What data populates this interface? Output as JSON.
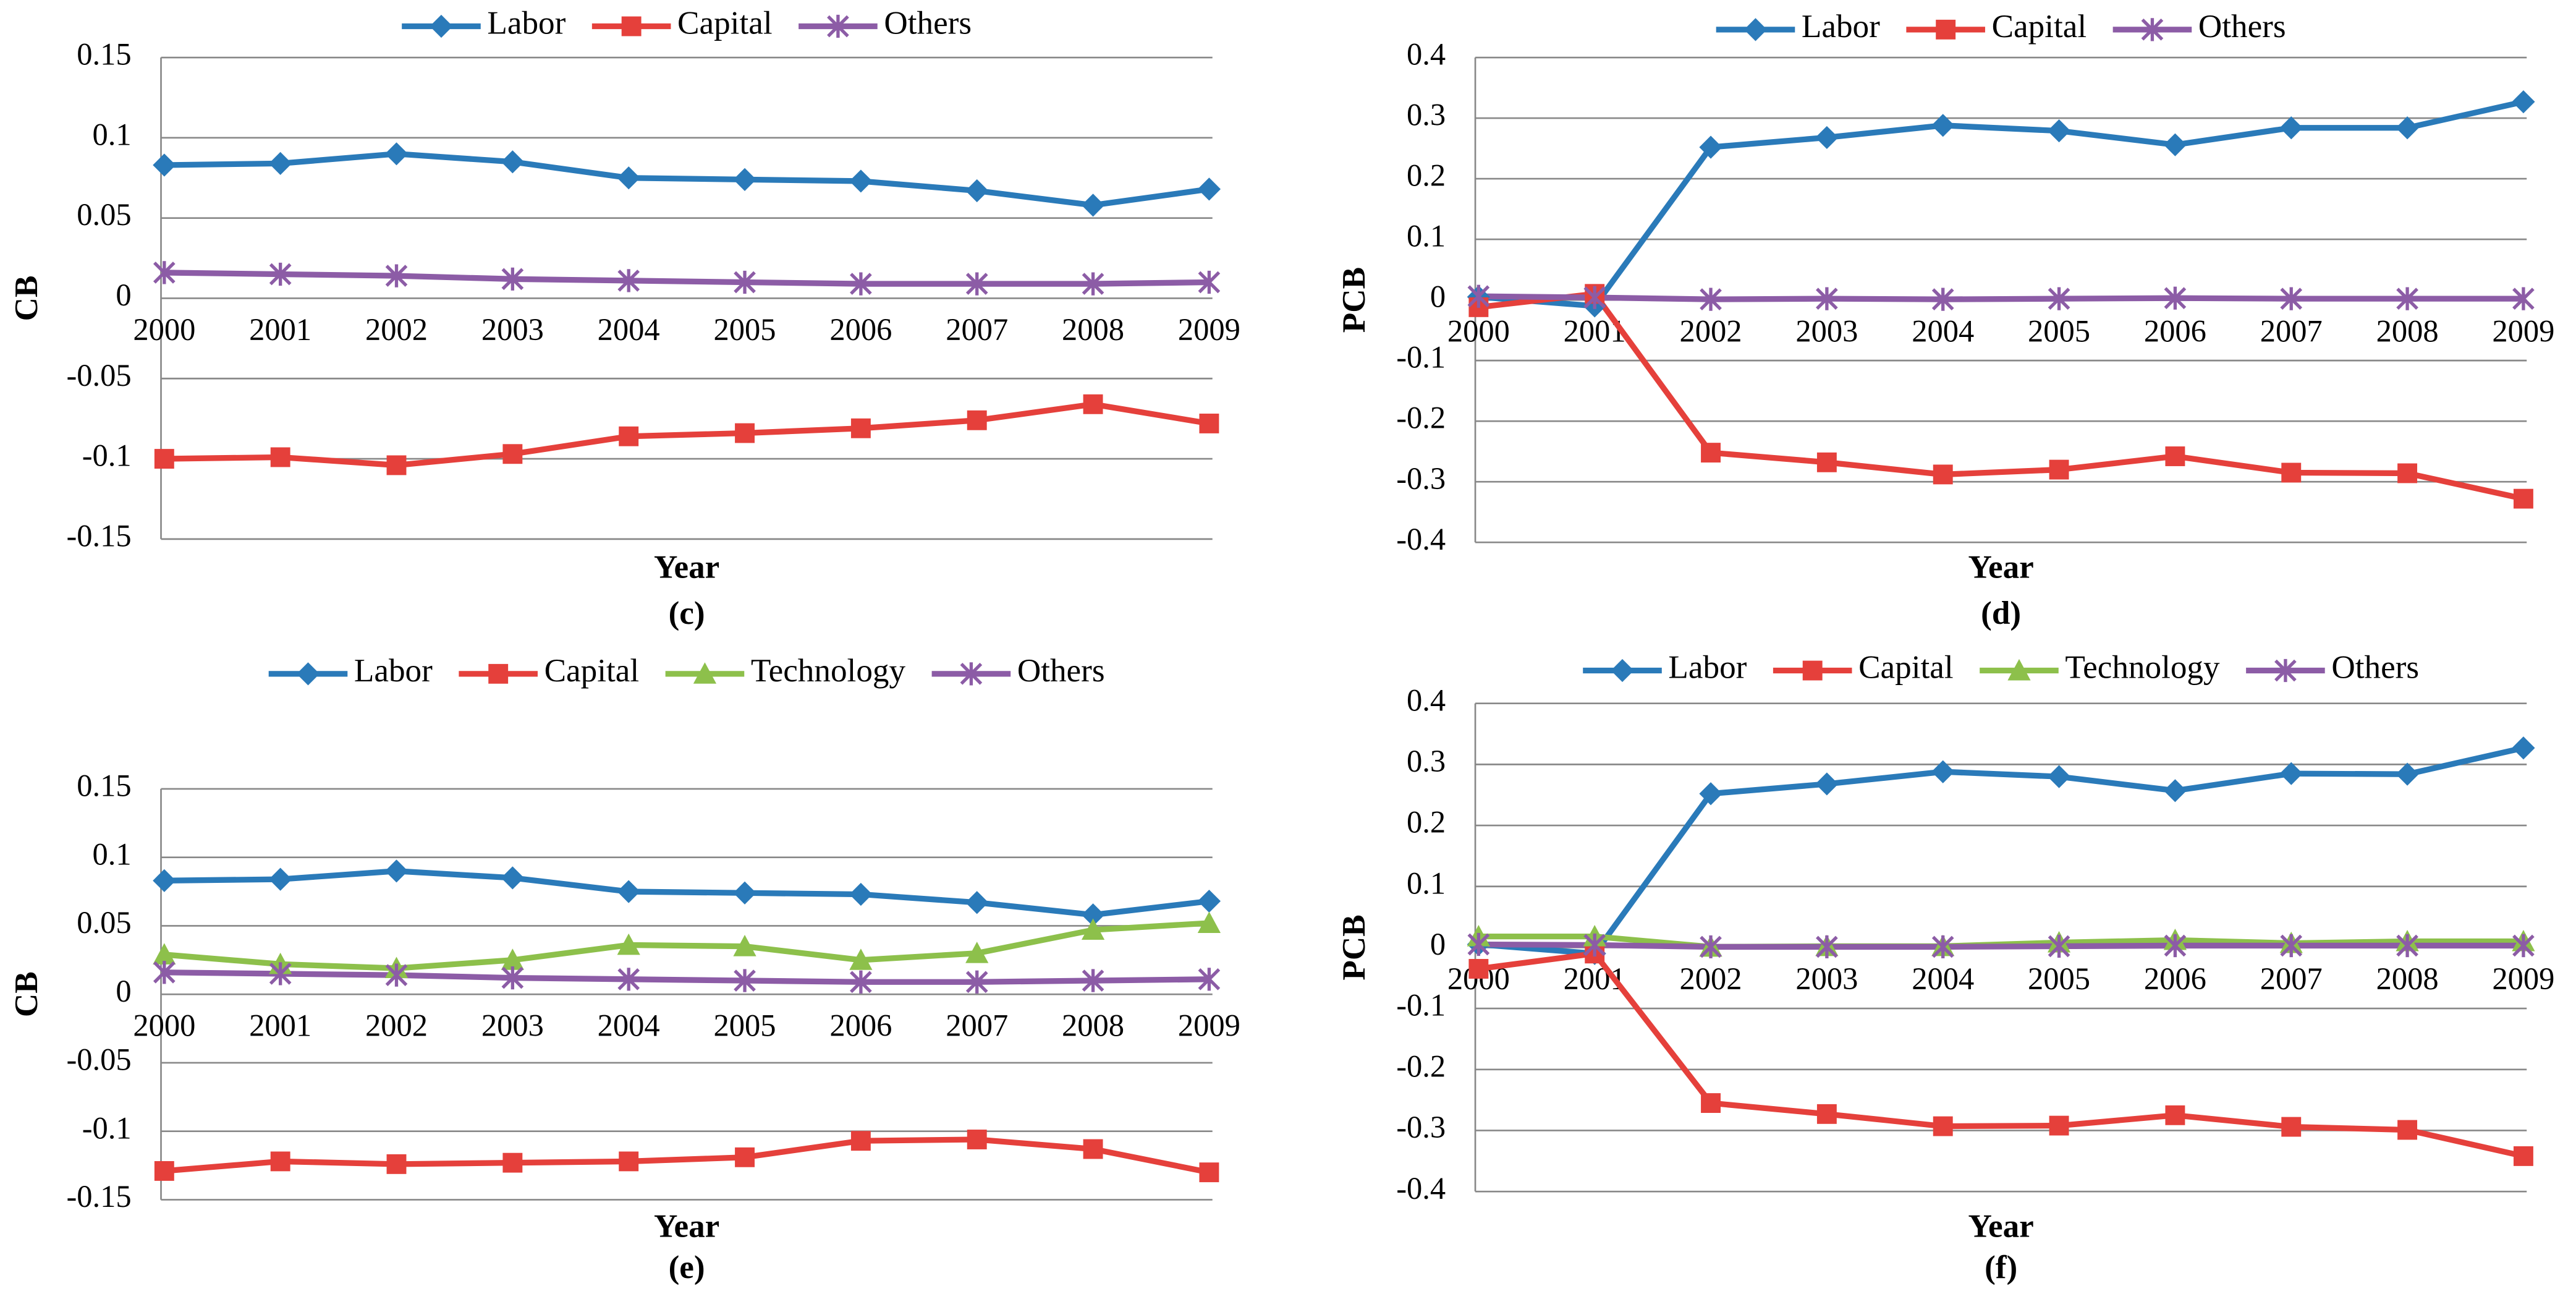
{
  "chart_data": [
    {
      "type": "line",
      "caption": "(c)",
      "x_label": "Year",
      "y_label": "CB",
      "categories": [
        "2000",
        "2001",
        "2002",
        "2003",
        "2004",
        "2005",
        "2006",
        "2007",
        "2008",
        "2009"
      ],
      "ylim": [
        -0.15,
        0.15
      ],
      "yticks": [
        -0.15,
        -0.1,
        -0.05,
        0,
        0.05,
        0.1,
        0.15
      ],
      "grid": true,
      "series": [
        {
          "name": "Labor",
          "color": "#2a7ab9",
          "marker": "diamond",
          "values": [
            0.083,
            0.084,
            0.09,
            0.085,
            0.075,
            0.074,
            0.073,
            0.067,
            0.058,
            0.068
          ]
        },
        {
          "name": "Capital",
          "color": "#e5403b",
          "marker": "square",
          "values": [
            -0.1,
            -0.099,
            -0.104,
            -0.097,
            -0.086,
            -0.084,
            -0.081,
            -0.076,
            -0.066,
            -0.078
          ]
        },
        {
          "name": "Others",
          "color": "#8c5ca6",
          "marker": "star",
          "values": [
            0.016,
            0.015,
            0.014,
            0.012,
            0.011,
            0.01,
            0.009,
            0.009,
            0.009,
            0.01
          ]
        }
      ]
    },
    {
      "type": "line",
      "caption": "(d)",
      "x_label": "Year",
      "y_label": "PCB",
      "categories": [
        "2000",
        "2001",
        "2002",
        "2003",
        "2004",
        "2005",
        "2006",
        "2007",
        "2008",
        "2009"
      ],
      "ylim": [
        -0.4,
        0.4
      ],
      "yticks": [
        -0.4,
        -0.3,
        -0.2,
        -0.1,
        0,
        0.1,
        0.2,
        0.3,
        0.4
      ],
      "grid": true,
      "series": [
        {
          "name": "Labor",
          "color": "#2a7ab9",
          "marker": "diamond",
          "values": [
            0.005,
            -0.01,
            0.252,
            0.268,
            0.288,
            0.279,
            0.256,
            0.284,
            0.284,
            0.327
          ]
        },
        {
          "name": "Capital",
          "color": "#e5403b",
          "marker": "square",
          "values": [
            -0.012,
            0.01,
            -0.252,
            -0.268,
            -0.288,
            -0.28,
            -0.258,
            -0.285,
            -0.286,
            -0.328
          ]
        },
        {
          "name": "Others",
          "color": "#8c5ca6",
          "marker": "star",
          "values": [
            0.006,
            0.004,
            0.001,
            0.002,
            0.001,
            0.002,
            0.003,
            0.002,
            0.002,
            0.002
          ]
        }
      ]
    },
    {
      "type": "line",
      "caption": "(e)",
      "x_label": "Year",
      "y_label": "CB",
      "categories": [
        "2000",
        "2001",
        "2002",
        "2003",
        "2004",
        "2005",
        "2006",
        "2007",
        "2008",
        "2009"
      ],
      "ylim": [
        -0.15,
        0.15
      ],
      "yticks": [
        -0.15,
        -0.1,
        -0.05,
        0,
        0.05,
        0.1,
        0.15
      ],
      "grid": true,
      "series": [
        {
          "name": "Labor",
          "color": "#2a7ab9",
          "marker": "diamond",
          "values": [
            0.083,
            0.084,
            0.09,
            0.085,
            0.075,
            0.074,
            0.073,
            0.067,
            0.058,
            0.068
          ]
        },
        {
          "name": "Capital",
          "color": "#e5403b",
          "marker": "square",
          "values": [
            -0.129,
            -0.122,
            -0.124,
            -0.123,
            -0.122,
            -0.119,
            -0.107,
            -0.106,
            -0.113,
            -0.13
          ]
        },
        {
          "name": "Technology",
          "color": "#8dc04b",
          "marker": "triangle",
          "values": [
            0.029,
            0.022,
            0.019,
            0.025,
            0.036,
            0.035,
            0.025,
            0.03,
            0.047,
            0.052
          ]
        },
        {
          "name": "Others",
          "color": "#8c5ca6",
          "marker": "star",
          "values": [
            0.016,
            0.015,
            0.014,
            0.012,
            0.011,
            0.01,
            0.009,
            0.009,
            0.01,
            0.011
          ]
        }
      ]
    },
    {
      "type": "line",
      "caption": "(f)",
      "x_label": "Year",
      "y_label": "PCB",
      "categories": [
        "2000",
        "2001",
        "2002",
        "2003",
        "2004",
        "2005",
        "2006",
        "2007",
        "2008",
        "2009"
      ],
      "ylim": [
        -0.4,
        0.4
      ],
      "yticks": [
        -0.4,
        -0.3,
        -0.2,
        -0.1,
        0,
        0.1,
        0.2,
        0.3,
        0.4
      ],
      "grid": true,
      "series": [
        {
          "name": "Labor",
          "color": "#2a7ab9",
          "marker": "diamond",
          "values": [
            0.005,
            -0.01,
            0.252,
            0.268,
            0.288,
            0.28,
            0.257,
            0.285,
            0.284,
            0.327
          ]
        },
        {
          "name": "Capital",
          "color": "#e5403b",
          "marker": "square",
          "values": [
            -0.035,
            -0.01,
            -0.255,
            -0.273,
            -0.293,
            -0.292,
            -0.275,
            -0.294,
            -0.299,
            -0.342
          ]
        },
        {
          "name": "Technology",
          "color": "#8dc04b",
          "marker": "triangle",
          "values": [
            0.018,
            0.018,
            0.001,
            0.002,
            0.002,
            0.008,
            0.012,
            0.007,
            0.01,
            0.01
          ]
        },
        {
          "name": "Others",
          "color": "#8c5ca6",
          "marker": "star",
          "values": [
            0.005,
            0.004,
            0.001,
            0.001,
            0.001,
            0.002,
            0.003,
            0.003,
            0.003,
            0.003
          ]
        }
      ]
    }
  ]
}
